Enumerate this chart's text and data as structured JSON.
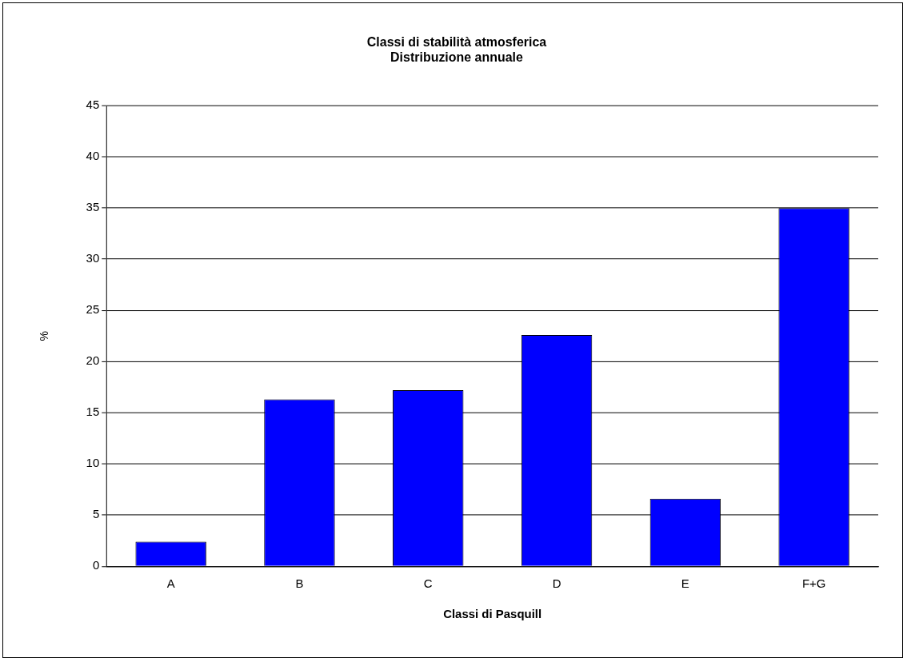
{
  "chart_data": {
    "type": "bar",
    "title": [
      "Classi di stabilità atmosferica",
      "Distribuzione annuale"
    ],
    "xlabel": "Classi di Pasquill",
    "ylabel": "%",
    "categories": [
      "A",
      "B",
      "C",
      "D",
      "E",
      "F+G"
    ],
    "values": [
      2.4,
      16.3,
      17.2,
      22.6,
      6.6,
      35
    ],
    "color": "#0000ff",
    "ylim": [
      0,
      45
    ],
    "yticks": [
      0,
      5,
      10,
      15,
      20,
      25,
      30,
      35,
      40,
      45
    ],
    "grid": "y",
    "legend": false
  }
}
